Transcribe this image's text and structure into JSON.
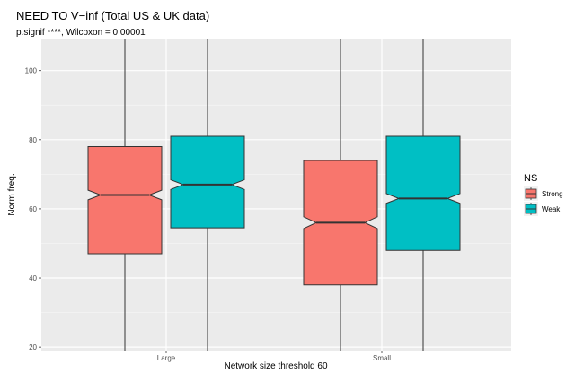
{
  "title": "NEED TO V−inf (Total US & UK data)",
  "subtitle": "p.signif ****, Wilcoxon = 0.00001",
  "chart_data": {
    "type": "boxplot",
    "notched": true,
    "xlabel": "Network size threshold 60",
    "ylabel": "Norm freq.",
    "categories": [
      "Large",
      "Small"
    ],
    "ylim": [
      19,
      109
    ],
    "yticks": [
      20,
      40,
      60,
      80,
      100
    ],
    "grid": true,
    "legend": {
      "title": "NS",
      "position": "right"
    },
    "series": [
      {
        "name": "Strong",
        "color": "#F8766D",
        "boxes": [
          {
            "category": "Large",
            "q1": 47,
            "median": 64,
            "q3": 78,
            "notch_low": 62.6,
            "notch_high": 65.4,
            "whisker_low": 19,
            "whisker_high": 109
          },
          {
            "category": "Small",
            "q1": 38,
            "median": 56,
            "q3": 74,
            "notch_low": 54.3,
            "notch_high": 57.7,
            "whisker_low": 19,
            "whisker_high": 109
          }
        ]
      },
      {
        "name": "Weak",
        "color": "#00BFC4",
        "boxes": [
          {
            "category": "Large",
            "q1": 54.5,
            "median": 67,
            "q3": 81,
            "notch_low": 65.6,
            "notch_high": 68.4,
            "whisker_low": 19,
            "whisker_high": 109
          },
          {
            "category": "Small",
            "q1": 48,
            "median": 63,
            "q3": 81,
            "notch_low": 61.6,
            "notch_high": 64.4,
            "whisker_low": 19,
            "whisker_high": 109
          }
        ]
      }
    ]
  }
}
